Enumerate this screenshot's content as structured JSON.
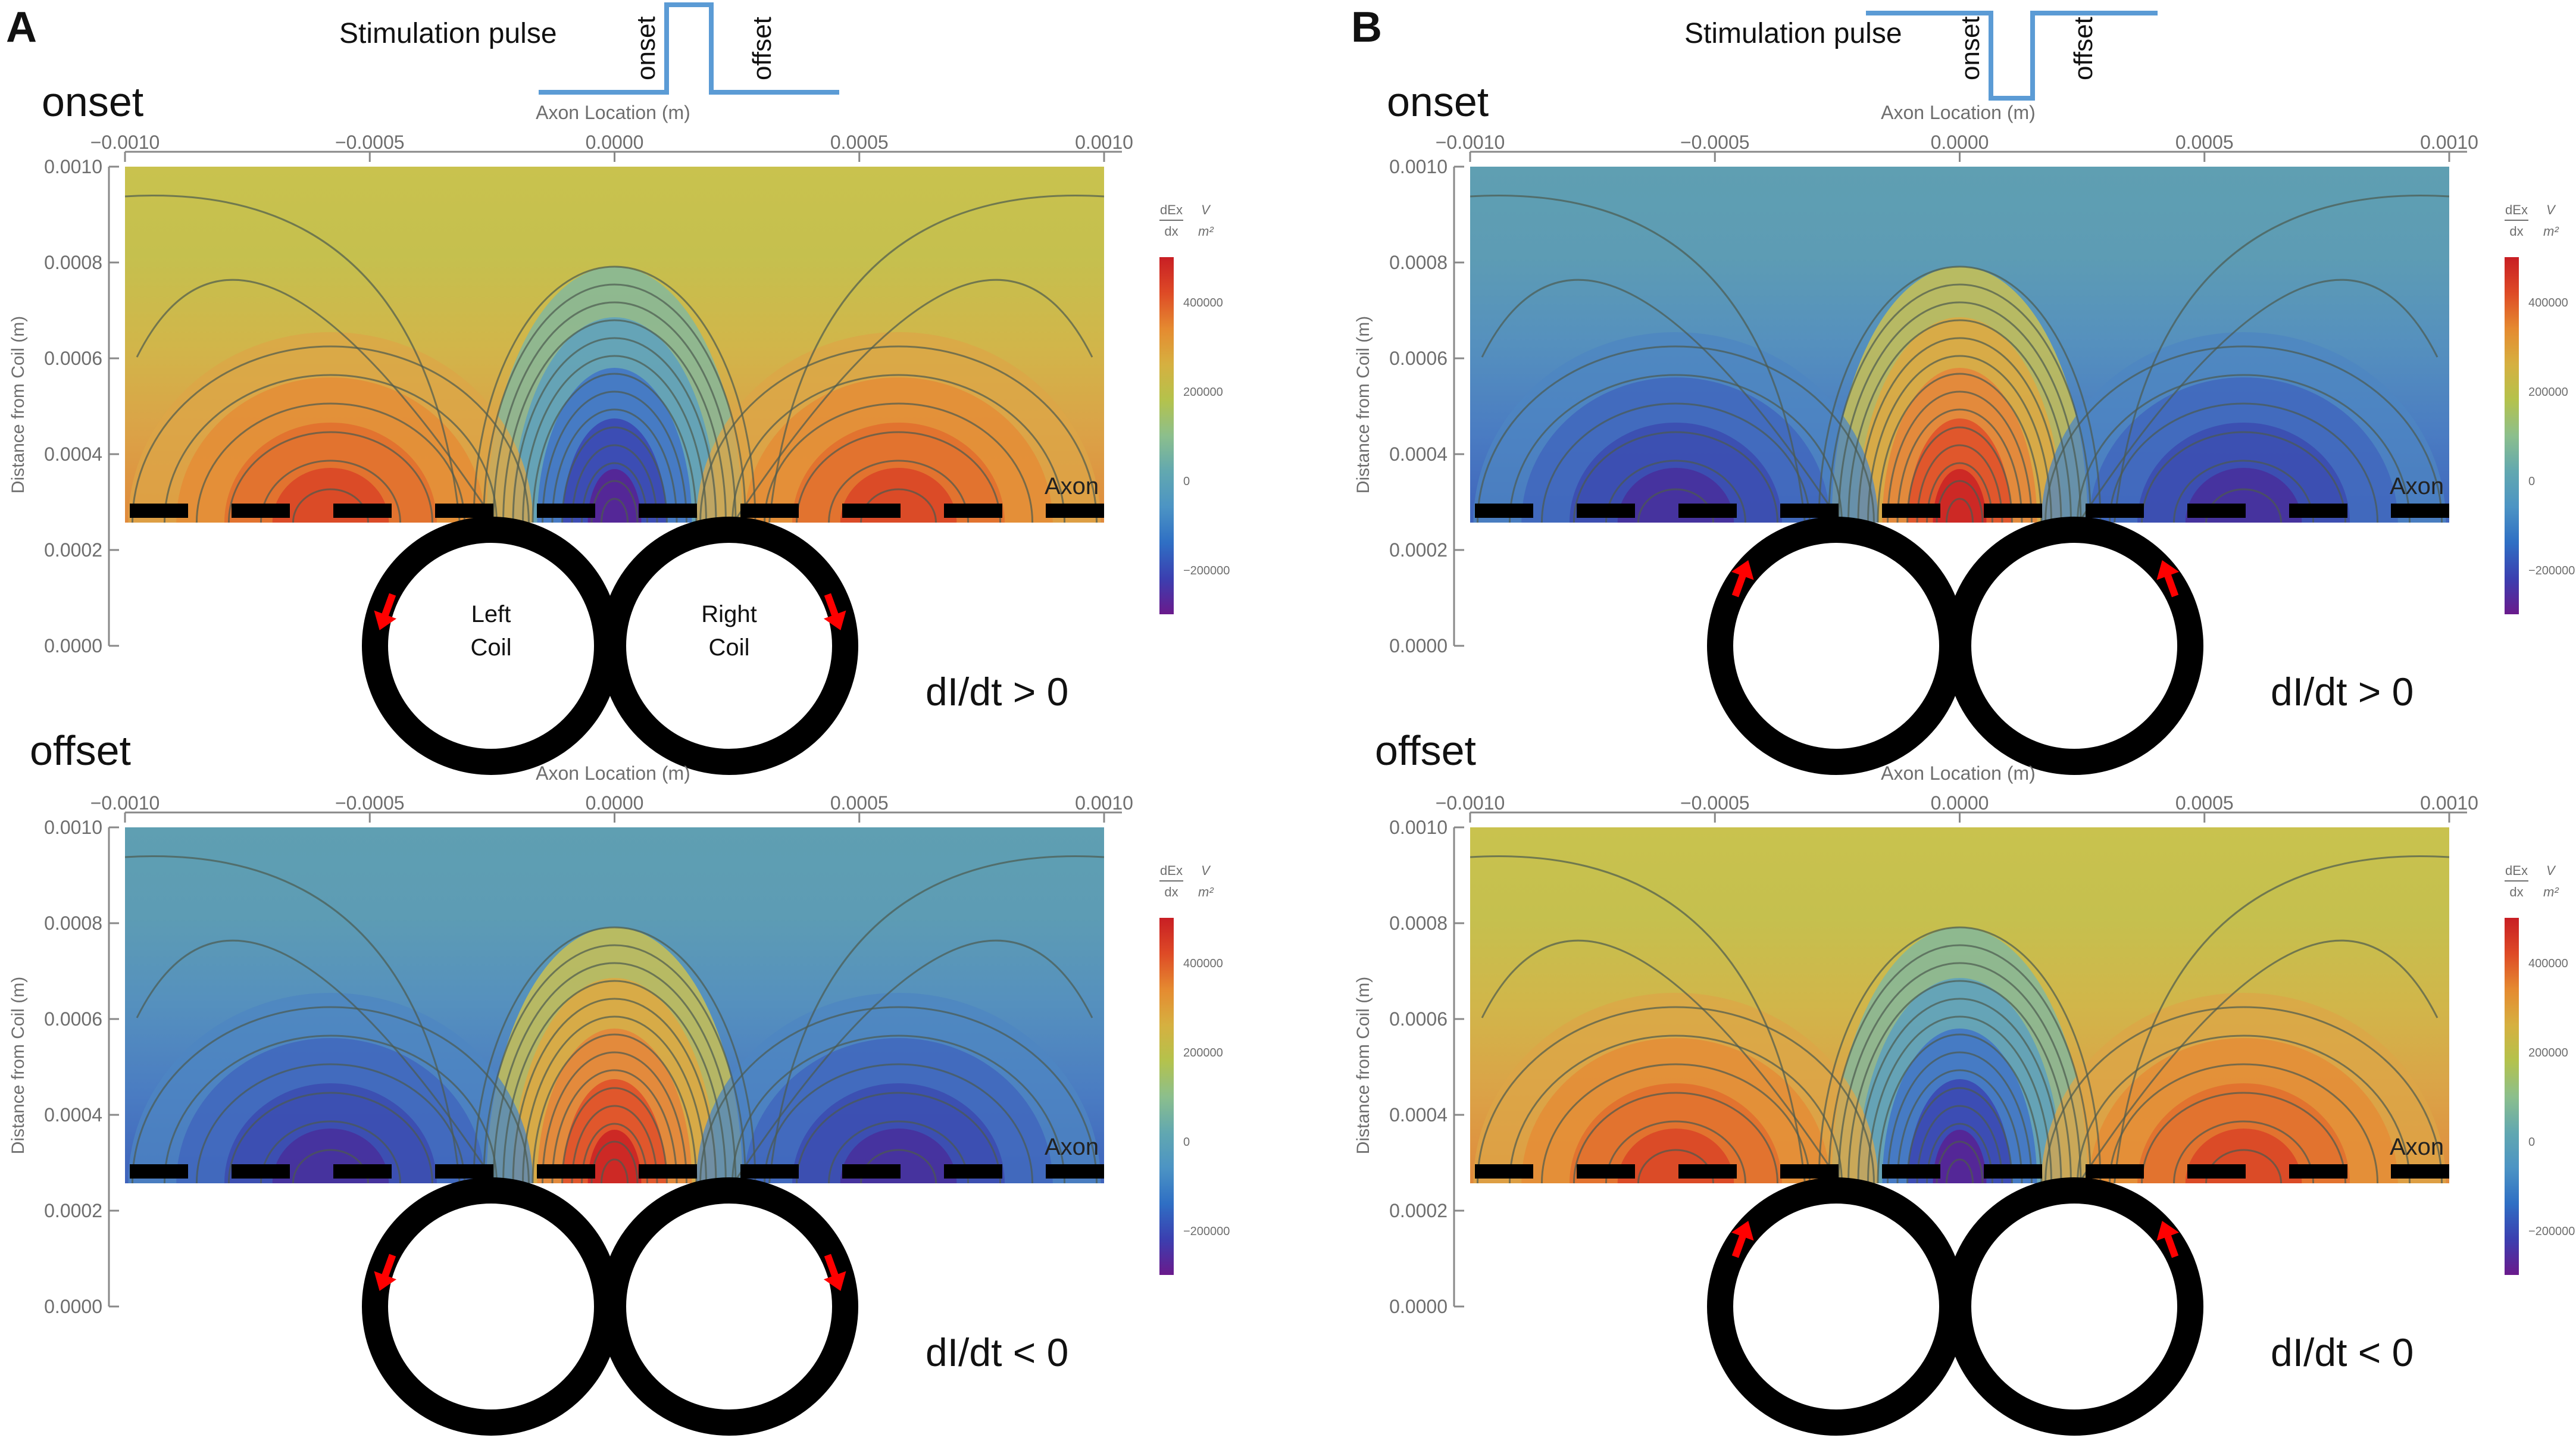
{
  "colors": {
    "background": "#ffffff",
    "axis": "#888888",
    "axis_text": "#6e6e6e",
    "contour": "#4b5a4e",
    "pulse": "#5b9bd5",
    "coil": "#000000",
    "arrow": "#ff0000",
    "axon": "#000000",
    "colormap": [
      "#6a1a8c",
      "#3b3fb0",
      "#2f6fc4",
      "#4c94c4",
      "#62a8b0",
      "#8cbf8c",
      "#b4c24c",
      "#d6b040",
      "#e58a30",
      "#de4a26",
      "#c81e24"
    ]
  },
  "figure": {
    "panels": [
      {
        "letter": "A",
        "pulse": {
          "title": "Stimulation pulse",
          "label_onset": "onset",
          "label_offset": "offset",
          "shape": "positive"
        },
        "subplots": [
          {
            "phase_label": "onset",
            "top_axis_label": "Axon Location (m)",
            "polarity": 1,
            "condition_label": "dI/dt > 0",
            "arrow_direction": "down",
            "coil_labels": [
              "Left\nCoil",
              "Right\nCoil"
            ],
            "axon_label": "Axon"
          },
          {
            "phase_label": "offset",
            "top_axis_label": "Axon Location (m)",
            "polarity": -1,
            "condition_label": "dI/dt < 0",
            "arrow_direction": "down",
            "coil_labels": [],
            "axon_label": "Axon"
          }
        ]
      },
      {
        "letter": "B",
        "pulse": {
          "title": "Stimulation pulse",
          "label_onset": "onset",
          "label_offset": "offset",
          "shape": "negative"
        },
        "subplots": [
          {
            "phase_label": "onset",
            "top_axis_label": "Axon Location (m)",
            "polarity": -1,
            "condition_label": "dI/dt > 0",
            "arrow_direction": "up",
            "coil_labels": [],
            "axon_label": "Axon"
          },
          {
            "phase_label": "offset",
            "top_axis_label": "Axon Location (m)",
            "polarity": 1,
            "condition_label": "dI/dt < 0",
            "arrow_direction": "up",
            "coil_labels": [],
            "axon_label": "Axon"
          }
        ]
      }
    ],
    "x_axis": {
      "range": [
        -0.001,
        0.001
      ],
      "ticks": [
        -0.001,
        -0.0005,
        0,
        0.0005,
        0.001
      ],
      "tick_labels": [
        "−0.0010",
        "−0.0005",
        "0.0000",
        "0.0005",
        "0.0010"
      ]
    },
    "y_axis": {
      "label": "Distance from Coil (m)",
      "range": [
        0,
        0.001
      ],
      "ticks": [
        0,
        0.0002,
        0.0004,
        0.0006,
        0.0008,
        0.001
      ],
      "tick_labels": [
        "0.0000",
        "0.0002",
        "0.0004",
        "0.0006",
        "0.0008",
        "0.0010"
      ]
    },
    "colorbar": {
      "label_numer": "dEx",
      "label_denom": "dx",
      "unit_numer": "V",
      "unit_denom": "m²",
      "range": [
        -300000,
        500000
      ],
      "ticks": [
        400000,
        200000,
        0,
        -200000
      ],
      "tick_labels": [
        "400000",
        "200000",
        "0",
        "−200000"
      ]
    }
  }
}
